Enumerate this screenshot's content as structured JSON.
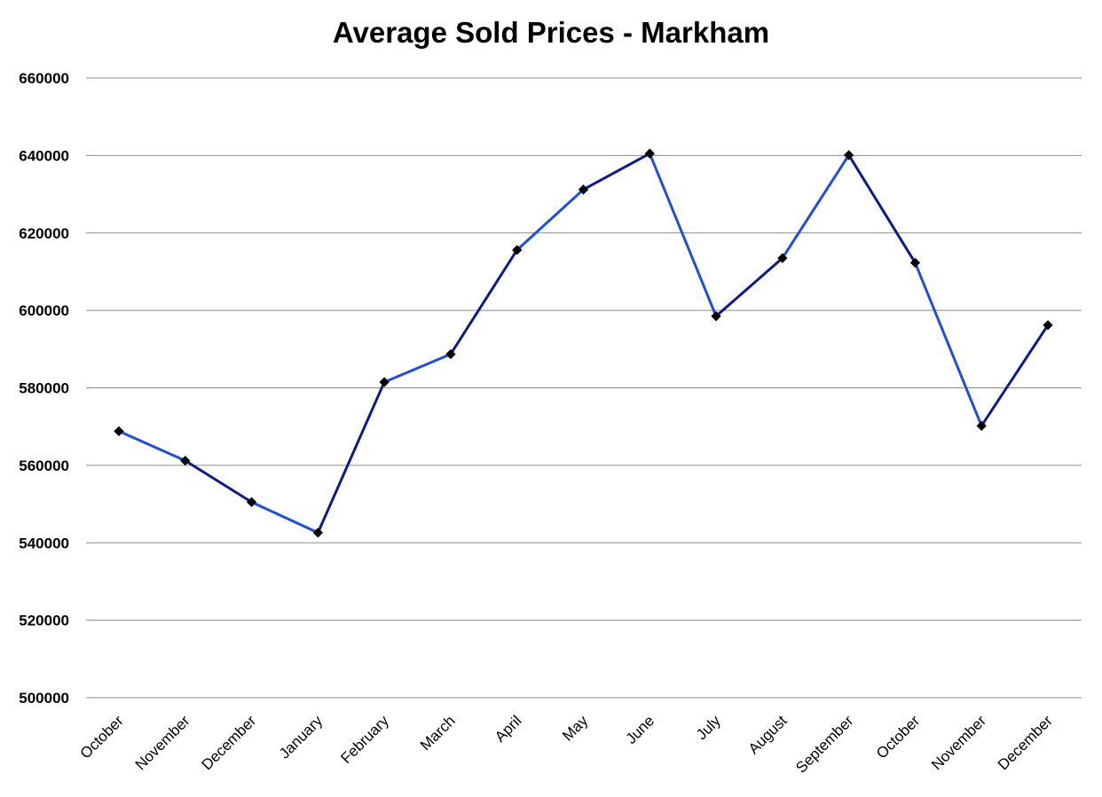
{
  "chart_data": {
    "type": "line",
    "title": "Average Sold Prices - Markham",
    "xlabel": "",
    "ylabel": "",
    "categories": [
      "October",
      "November",
      "December",
      "January",
      "February",
      "March",
      "April",
      "May",
      "June",
      "July",
      "August",
      "September",
      "October",
      "November",
      "December"
    ],
    "series": [
      {
        "values": [
          568800,
          561200,
          550500,
          542600,
          581500,
          588700,
          615600,
          631200,
          640500,
          598500,
          613500,
          640100,
          612300,
          570200,
          596200
        ]
      }
    ],
    "ylim": [
      500000,
      660000
    ],
    "yticks": [
      "500000",
      "520000",
      "540000",
      "560000",
      "580000",
      "600000",
      "620000",
      "640000",
      "660000"
    ],
    "grid": true,
    "legend": "none",
    "colors": {
      "line_light": "#1f4fd8",
      "line_dark": "#0d1a8c",
      "marker": "#000000",
      "grid": "#8c8c8c"
    }
  }
}
